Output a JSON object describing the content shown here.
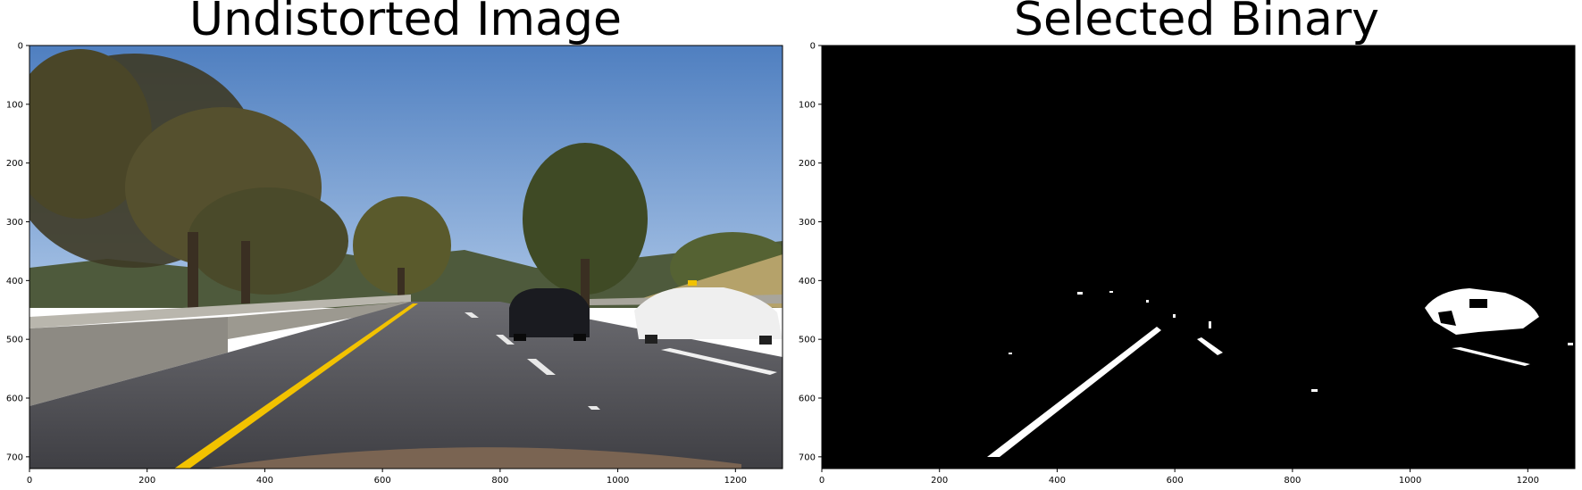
{
  "panels": [
    {
      "id": "left",
      "title": "Undistorted Image",
      "x_ticks": [
        "0",
        "200",
        "400",
        "600",
        "800",
        "1000",
        "1200"
      ],
      "y_ticks": [
        "0",
        "100",
        "200",
        "300",
        "400",
        "500",
        "600",
        "700"
      ],
      "xlim": [
        0,
        1280
      ],
      "ylim": [
        720,
        0
      ]
    },
    {
      "id": "right",
      "title": "Selected Binary",
      "x_ticks": [
        "0",
        "200",
        "400",
        "600",
        "800",
        "1000",
        "1200"
      ],
      "y_ticks": [
        "0",
        "100",
        "200",
        "300",
        "400",
        "500",
        "600",
        "700"
      ],
      "xlim": [
        0,
        1280
      ],
      "ylim": [
        720,
        0
      ]
    }
  ],
  "colors": {
    "sky": "#7fa8d8",
    "road": "#5a5a5f",
    "lane_yellow": "#f2c200",
    "binary_bg": "#000000",
    "binary_fg": "#ffffff"
  }
}
